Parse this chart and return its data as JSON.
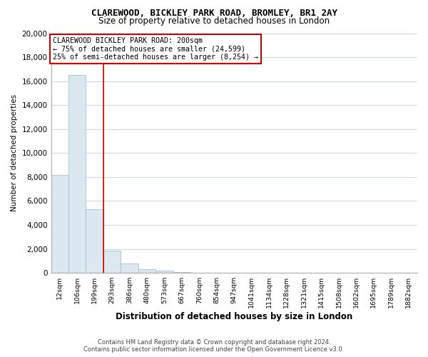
{
  "title": "CLAREWOOD, BICKLEY PARK ROAD, BROMLEY, BR1 2AY",
  "subtitle": "Size of property relative to detached houses in London",
  "xlabel": "Distribution of detached houses by size in London",
  "ylabel": "Number of detached properties",
  "footer_line1": "Contains HM Land Registry data © Crown copyright and database right 2024.",
  "footer_line2": "Contains public sector information licensed under the Open Government Licence v3.0.",
  "bar_labels": [
    "12sqm",
    "106sqm",
    "199sqm",
    "293sqm",
    "386sqm",
    "480sqm",
    "573sqm",
    "667sqm",
    "760sqm",
    "854sqm",
    "947sqm",
    "1041sqm",
    "1134sqm",
    "1228sqm",
    "1321sqm",
    "1415sqm",
    "1508sqm",
    "1602sqm",
    "1695sqm",
    "1789sqm",
    "1882sqm"
  ],
  "bar_values": [
    8200,
    16500,
    5300,
    1850,
    780,
    290,
    180,
    100,
    0,
    0,
    0,
    0,
    0,
    0,
    0,
    0,
    0,
    0,
    0,
    0,
    0
  ],
  "bar_color_fill": "#dce8f0",
  "bar_color_edge": "#a8c0d0",
  "vline_color": "#cc0000",
  "vline_index": 2,
  "annotation_text_line1": "CLAREWOOD BICKLEY PARK ROAD: 200sqm",
  "annotation_text_line2": "← 75% of detached houses are smaller (24,599)",
  "annotation_text_line3": "25% of semi-detached houses are larger (8,254) →",
  "ylim": [
    0,
    20000
  ],
  "yticks": [
    0,
    2000,
    4000,
    6000,
    8000,
    10000,
    12000,
    14000,
    16000,
    18000,
    20000
  ],
  "background_color": "#ffffff",
  "grid_color": "#c8d8e4",
  "title_fontsize": 9,
  "subtitle_fontsize": 8.5
}
